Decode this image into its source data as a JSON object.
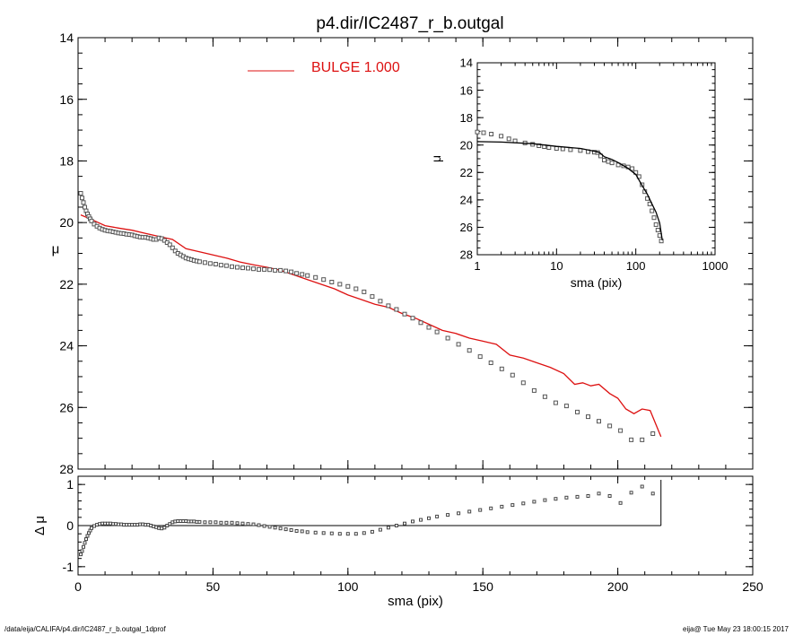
{
  "title": "p4.dir/IC2487_r_b.outgal",
  "footer_left": "/data/eija/CALIFA/p4.dir/IC2487_r_b.outgal_1dprof",
  "footer_right": "eija@  Tue May 23 18:00:15 2017",
  "chart_data": [
    {
      "id": "main",
      "type": "scatter",
      "title": "p4.dir/IC2487_r_b.outgal",
      "xlabel": "sma (pix)",
      "ylabel": "μ",
      "xlim": [
        0,
        250
      ],
      "ylim": [
        28,
        14
      ],
      "y_inverted": true,
      "xticks": [
        0,
        50,
        100,
        150,
        200,
        250
      ],
      "yticks": [
        14,
        16,
        18,
        20,
        22,
        24,
        26,
        28
      ],
      "legend": {
        "label": "BULGE  1.000",
        "color": "#dd1111",
        "position": "top-center"
      },
      "series": [
        {
          "name": "BULGE  1.000",
          "kind": "line",
          "color": "#dd1111",
          "x": [
            1,
            5,
            10,
            15,
            20,
            25,
            30,
            35,
            40,
            45,
            50,
            55,
            60,
            65,
            70,
            75,
            80,
            85,
            90,
            95,
            100,
            105,
            110,
            115,
            120,
            125,
            130,
            135,
            140,
            145,
            150,
            155,
            160,
            165,
            170,
            175,
            180,
            184,
            187,
            190,
            193,
            197,
            200,
            203,
            206,
            209,
            212,
            216
          ],
          "y": [
            19.75,
            19.9,
            20.1,
            20.18,
            20.25,
            20.35,
            20.45,
            20.55,
            20.85,
            20.95,
            21.05,
            21.15,
            21.28,
            21.37,
            21.45,
            21.55,
            21.7,
            21.85,
            22.0,
            22.15,
            22.35,
            22.5,
            22.65,
            22.75,
            22.95,
            23.1,
            23.3,
            23.5,
            23.6,
            23.75,
            23.85,
            23.95,
            24.3,
            24.4,
            24.55,
            24.7,
            24.9,
            25.25,
            25.2,
            25.3,
            25.25,
            25.55,
            25.7,
            26.05,
            26.2,
            26.05,
            26.1,
            26.95
          ]
        },
        {
          "name": "",
          "kind": "points",
          "color": "#555555",
          "x": [
            1,
            1.5,
            2,
            2.5,
            3,
            3.5,
            4,
            4.5,
            5,
            6,
            7,
            8,
            9,
            10,
            11,
            12,
            13,
            14,
            15,
            16,
            17,
            18,
            19,
            20,
            21,
            22,
            23,
            24,
            25,
            26,
            27,
            28,
            29,
            30,
            31,
            32,
            33,
            34,
            35,
            36,
            37,
            38,
            39,
            40,
            41,
            42,
            43,
            44,
            45,
            47,
            49,
            51,
            53,
            55,
            57,
            59,
            61,
            63,
            65,
            67,
            69,
            71,
            73,
            75,
            77,
            79,
            81,
            83,
            85,
            88,
            91,
            94,
            97,
            100,
            103,
            106,
            109,
            112,
            115,
            118,
            121,
            124,
            127,
            130,
            133,
            137,
            141,
            145,
            149,
            153,
            157,
            161,
            165,
            169,
            173,
            177,
            181,
            185,
            189,
            193,
            197,
            201,
            205,
            209,
            213
          ],
          "y": [
            19.05,
            19.2,
            19.35,
            19.5,
            19.62,
            19.72,
            19.8,
            19.88,
            19.95,
            20.05,
            20.12,
            20.18,
            20.22,
            20.25,
            20.27,
            20.28,
            20.3,
            20.32,
            20.34,
            20.35,
            20.36,
            20.38,
            20.39,
            20.4,
            20.43,
            20.45,
            20.47,
            20.48,
            20.48,
            20.5,
            20.52,
            20.55,
            20.55,
            20.5,
            20.52,
            20.58,
            20.65,
            20.72,
            20.82,
            20.92,
            21.0,
            21.05,
            21.1,
            21.15,
            21.18,
            21.2,
            21.23,
            21.25,
            21.27,
            21.3,
            21.33,
            21.35,
            21.38,
            21.4,
            21.43,
            21.45,
            21.47,
            21.48,
            21.5,
            21.52,
            21.52,
            21.53,
            21.55,
            21.55,
            21.57,
            21.6,
            21.65,
            21.68,
            21.72,
            21.78,
            21.85,
            21.93,
            22.0,
            22.07,
            22.15,
            22.25,
            22.4,
            22.55,
            22.7,
            22.82,
            22.97,
            23.1,
            23.25,
            23.4,
            23.55,
            23.75,
            23.95,
            24.15,
            24.35,
            24.55,
            24.75,
            24.95,
            25.2,
            25.45,
            25.65,
            25.85,
            25.95,
            26.15,
            26.3,
            26.45,
            26.6,
            26.75,
            27.05,
            27.05,
            26.85
          ]
        }
      ]
    },
    {
      "id": "residual",
      "type": "scatter",
      "xlabel": "sma (pix)",
      "ylabel": "Δ μ",
      "xlim": [
        0,
        250
      ],
      "ylim": [
        -1.2,
        1.2
      ],
      "xticks": [
        0,
        50,
        100,
        150,
        200,
        250
      ],
      "yticks": [
        -1,
        0,
        1
      ],
      "reference_line": 0,
      "series": [
        {
          "name": "",
          "kind": "points",
          "color": "#444444",
          "x": [
            1,
            1.5,
            2,
            2.5,
            3,
            3.5,
            4,
            4.5,
            5,
            6,
            7,
            8,
            9,
            10,
            11,
            12,
            13,
            14,
            15,
            16,
            17,
            18,
            19,
            20,
            21,
            22,
            23,
            24,
            25,
            26,
            27,
            28,
            29,
            30,
            31,
            32,
            33,
            34,
            35,
            36,
            37,
            38,
            39,
            40,
            41,
            42,
            43,
            44,
            45,
            47,
            49,
            51,
            53,
            55,
            57,
            59,
            61,
            63,
            65,
            67,
            69,
            71,
            73,
            75,
            77,
            79,
            81,
            83,
            85,
            88,
            91,
            94,
            97,
            100,
            103,
            106,
            109,
            112,
            115,
            118,
            121,
            124,
            127,
            130,
            133,
            137,
            141,
            145,
            149,
            153,
            157,
            161,
            165,
            169,
            173,
            177,
            181,
            185,
            189,
            193,
            197,
            201,
            205,
            209,
            213
          ],
          "y": [
            -0.7,
            -0.62,
            -0.52,
            -0.42,
            -0.33,
            -0.25,
            -0.18,
            -0.12,
            -0.06,
            -0.01,
            0.02,
            0.04,
            0.05,
            0.05,
            0.05,
            0.05,
            0.04,
            0.04,
            0.03,
            0.03,
            0.02,
            0.02,
            0.02,
            0.02,
            0.02,
            0.02,
            0.03,
            0.03,
            0.02,
            0.02,
            0.0,
            -0.02,
            -0.04,
            -0.06,
            -0.07,
            -0.05,
            0.0,
            0.04,
            0.08,
            0.1,
            0.11,
            0.11,
            0.11,
            0.11,
            0.1,
            0.1,
            0.1,
            0.09,
            0.09,
            0.08,
            0.08,
            0.08,
            0.07,
            0.07,
            0.07,
            0.06,
            0.05,
            0.04,
            0.03,
            0.01,
            -0.01,
            -0.03,
            -0.05,
            -0.07,
            -0.09,
            -0.11,
            -0.13,
            -0.14,
            -0.16,
            -0.17,
            -0.18,
            -0.19,
            -0.2,
            -0.2,
            -0.2,
            -0.18,
            -0.15,
            -0.1,
            -0.05,
            0.0,
            0.05,
            0.1,
            0.14,
            0.18,
            0.22,
            0.26,
            0.3,
            0.34,
            0.38,
            0.42,
            0.46,
            0.5,
            0.54,
            0.58,
            0.62,
            0.65,
            0.68,
            0.7,
            0.72,
            0.78,
            0.72,
            0.55,
            0.8,
            0.95,
            0.78
          ]
        }
      ]
    },
    {
      "id": "inset",
      "type": "scatter",
      "xlabel": "sma (pix)",
      "ylabel": "μ",
      "x_scale": "log",
      "xlim": [
        1,
        1000
      ],
      "ylim": [
        28,
        14
      ],
      "y_inverted": true,
      "xticks": [
        1,
        10,
        100,
        1000
      ],
      "yticks": [
        14,
        16,
        18,
        20,
        22,
        24,
        26,
        28
      ],
      "series": [
        {
          "name": "",
          "kind": "points",
          "color": "#555555",
          "x": [
            1,
            1.2,
            1.5,
            2,
            2.5,
            3,
            4,
            5,
            6,
            7,
            8,
            10,
            12,
            15,
            20,
            25,
            30,
            33,
            36,
            40,
            45,
            50,
            60,
            70,
            80,
            90,
            100,
            110,
            120,
            130,
            140,
            150,
            160,
            170,
            180,
            190,
            200,
            210
          ],
          "y": [
            19.05,
            19.1,
            19.2,
            19.35,
            19.55,
            19.7,
            19.85,
            19.95,
            20.05,
            20.12,
            20.18,
            20.25,
            20.28,
            20.34,
            20.4,
            20.48,
            20.52,
            20.55,
            20.8,
            21.1,
            21.2,
            21.3,
            21.45,
            21.52,
            21.6,
            21.72,
            22.0,
            22.3,
            22.9,
            23.4,
            23.9,
            24.3,
            24.8,
            25.3,
            25.8,
            26.2,
            26.6,
            27.0
          ]
        },
        {
          "name": "",
          "kind": "line",
          "color": "#000000",
          "x": [
            1,
            2,
            5,
            10,
            20,
            30,
            35,
            40,
            50,
            60,
            80,
            100,
            120,
            140,
            160,
            180,
            200,
            216
          ],
          "y": [
            19.75,
            19.78,
            19.9,
            20.1,
            20.25,
            20.45,
            20.55,
            20.85,
            21.05,
            21.28,
            21.7,
            22.15,
            22.95,
            23.6,
            24.3,
            24.9,
            25.7,
            26.95
          ]
        }
      ]
    }
  ]
}
